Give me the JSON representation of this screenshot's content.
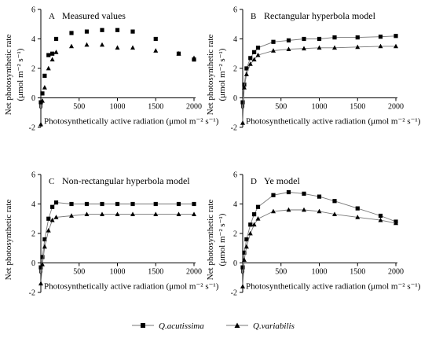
{
  "ylabel_main": "Net photosynthetic rate",
  "ylabel_unit": "(μmol m⁻² s⁻¹)",
  "legend": [
    {
      "label": "Q.acutissima",
      "marker": "square"
    },
    {
      "label": "Q.variabilis",
      "marker": "triangle"
    }
  ],
  "chart_data": [
    {
      "type": "scatter",
      "letter": "A",
      "title": "Measured values",
      "xlabel": "Photosynthetically active radiation (μmol m⁻² s⁻¹)",
      "xlim": [
        0,
        2000
      ],
      "ylim": [
        -2,
        6
      ],
      "xticks": [
        0,
        500,
        1000,
        1500,
        2000
      ],
      "yticks": [
        -2,
        0,
        2,
        4,
        6
      ],
      "show_line": false,
      "series": [
        {
          "name": "Q.acutissima",
          "marker": "square",
          "x": [
            0,
            20,
            50,
            100,
            150,
            200,
            400,
            600,
            800,
            1000,
            1200,
            1500,
            1800,
            2000
          ],
          "y": [
            -0.3,
            0.3,
            1.5,
            2.9,
            3.0,
            4.0,
            4.4,
            4.5,
            4.6,
            4.6,
            4.5,
            4.0,
            3.0,
            2.6
          ]
        },
        {
          "name": "Q.variabilis",
          "marker": "triangle",
          "x": [
            0,
            20,
            50,
            100,
            150,
            200,
            400,
            600,
            800,
            1000,
            1200,
            1500,
            1800,
            2000
          ],
          "y": [
            -1.8,
            -0.2,
            0.7,
            2.0,
            2.6,
            3.1,
            3.5,
            3.6,
            3.6,
            3.4,
            3.4,
            3.2,
            3.0,
            2.7
          ]
        }
      ]
    },
    {
      "type": "line",
      "letter": "B",
      "title": "Rectangular hyperbola model",
      "xlabel": "Photosynthetically active radiation (μmol m⁻² s⁻¹)",
      "xlim": [
        0,
        2000
      ],
      "ylim": [
        -2,
        6
      ],
      "xticks": [
        0,
        500,
        1000,
        1500,
        2000
      ],
      "yticks": [
        -2,
        0,
        2,
        4,
        6
      ],
      "show_line": true,
      "series": [
        {
          "name": "Q.acutissima",
          "marker": "square",
          "x": [
            0,
            20,
            50,
            100,
            150,
            200,
            400,
            600,
            800,
            1000,
            1200,
            1500,
            1800,
            2000
          ],
          "y": [
            -0.3,
            0.9,
            2.0,
            2.7,
            3.1,
            3.4,
            3.8,
            3.9,
            4.0,
            4.0,
            4.1,
            4.1,
            4.15,
            4.2
          ]
        },
        {
          "name": "Q.variabilis",
          "marker": "triangle",
          "x": [
            0,
            20,
            50,
            100,
            150,
            200,
            400,
            600,
            800,
            1000,
            1200,
            1500,
            1800,
            2000
          ],
          "y": [
            -1.7,
            0.7,
            1.6,
            2.3,
            2.6,
            2.9,
            3.2,
            3.3,
            3.35,
            3.4,
            3.4,
            3.45,
            3.5,
            3.5
          ]
        }
      ]
    },
    {
      "type": "line",
      "letter": "C",
      "title": "Non-rectangular hyperbola model",
      "xlabel": "Photosynthetically active radiation (μmol m⁻² s⁻¹)",
      "xlim": [
        0,
        2000
      ],
      "ylim": [
        -2,
        6
      ],
      "xticks": [
        0,
        500,
        1000,
        1500,
        2000
      ],
      "yticks": [
        -2,
        0,
        2,
        4,
        6
      ],
      "show_line": true,
      "series": [
        {
          "name": "Q.acutissima",
          "marker": "square",
          "x": [
            0,
            20,
            50,
            100,
            150,
            200,
            400,
            600,
            800,
            1000,
            1200,
            1500,
            1800,
            2000
          ],
          "y": [
            -0.3,
            0.4,
            1.6,
            3.0,
            3.8,
            4.1,
            4.0,
            4.0,
            4.0,
            4.0,
            4.0,
            4.0,
            4.0,
            4.0
          ]
        },
        {
          "name": "Q.variabilis",
          "marker": "triangle",
          "x": [
            0,
            20,
            50,
            100,
            150,
            200,
            400,
            600,
            800,
            1000,
            1200,
            1500,
            1800,
            2000
          ],
          "y": [
            -1.4,
            -0.1,
            1.1,
            2.2,
            2.9,
            3.1,
            3.2,
            3.3,
            3.3,
            3.3,
            3.3,
            3.3,
            3.3,
            3.3
          ]
        }
      ]
    },
    {
      "type": "line",
      "letter": "D",
      "title": "Ye model",
      "xlabel": "Photosynthetically active radiation (μmol m⁻² s⁻¹)",
      "xlim": [
        0,
        2000
      ],
      "ylim": [
        -2,
        6
      ],
      "xticks": [
        0,
        500,
        1000,
        1500,
        2000
      ],
      "yticks": [
        -2,
        0,
        2,
        4,
        6
      ],
      "show_line": true,
      "series": [
        {
          "name": "Q.acutissima",
          "marker": "square",
          "x": [
            0,
            20,
            50,
            100,
            150,
            200,
            400,
            600,
            800,
            1000,
            1200,
            1500,
            1800,
            2000
          ],
          "y": [
            -0.3,
            0.7,
            1.6,
            2.6,
            3.3,
            3.8,
            4.6,
            4.8,
            4.7,
            4.5,
            4.2,
            3.7,
            3.2,
            2.8
          ]
        },
        {
          "name": "Q.variabilis",
          "marker": "triangle",
          "x": [
            0,
            20,
            50,
            100,
            150,
            200,
            400,
            600,
            800,
            1000,
            1200,
            1500,
            1800,
            2000
          ],
          "y": [
            -1.6,
            0.2,
            1.1,
            2.0,
            2.6,
            3.0,
            3.5,
            3.6,
            3.6,
            3.5,
            3.3,
            3.1,
            2.9,
            2.7
          ]
        }
      ]
    }
  ]
}
